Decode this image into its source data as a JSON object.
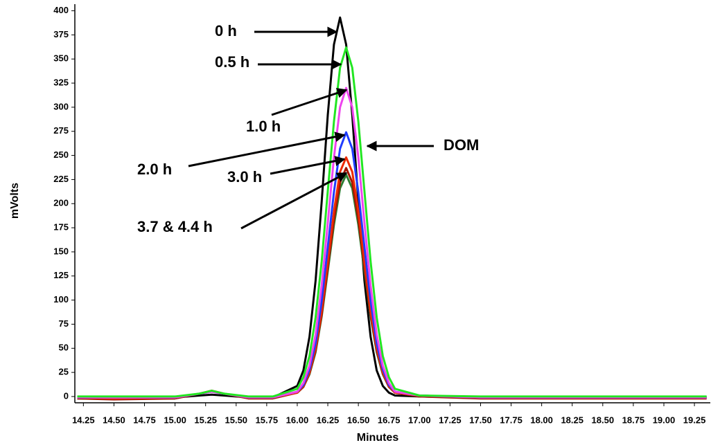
{
  "chart_data": {
    "type": "line",
    "x_label": "Minutes",
    "y_label": "mVolts",
    "x": [
      14.2,
      14.5,
      15.0,
      15.2,
      15.3,
      15.4,
      15.6,
      15.8,
      16.0,
      16.05,
      16.1,
      16.15,
      16.2,
      16.25,
      16.3,
      16.35,
      16.4,
      16.45,
      16.5,
      16.55,
      16.6,
      16.65,
      16.7,
      16.75,
      16.8,
      17.0,
      17.5,
      18.0,
      18.5,
      19.0,
      19.35
    ],
    "series": [
      {
        "color": "#000000",
        "values": [
          -1,
          -1,
          -1,
          1,
          2,
          1,
          -1,
          -1,
          11,
          27,
          62,
          120,
          202,
          292,
          365,
          393,
          365,
          292,
          202,
          120,
          62,
          27,
          11,
          4,
          1,
          0,
          -1,
          -1,
          -1,
          -1,
          -1
        ]
      },
      {
        "color": "#2e7d32",
        "values": [
          -2,
          -2,
          -2,
          3,
          6,
          3,
          -1,
          -1,
          4,
          10,
          23,
          46,
          83,
          130,
          178,
          216,
          230,
          216,
          178,
          130,
          83,
          46,
          23,
          10,
          4,
          0,
          -1,
          -1,
          -1,
          -1,
          -1
        ]
      },
      {
        "color": "#a31500",
        "values": [
          -2,
          -3,
          -2,
          3,
          6,
          3,
          -2,
          -2,
          4,
          10,
          24,
          48,
          85,
          134,
          184,
          222,
          237,
          222,
          184,
          134,
          85,
          48,
          24,
          10,
          4,
          0,
          -2,
          -2,
          -2,
          -2,
          -2
        ]
      },
      {
        "color": "#ee2a00",
        "values": [
          -1,
          -2,
          -1,
          3,
          6,
          3,
          -1,
          -1,
          4,
          11,
          25,
          50,
          89,
          140,
          192,
          233,
          248,
          233,
          192,
          140,
          89,
          50,
          25,
          11,
          4,
          1,
          -1,
          -1,
          -1,
          -1,
          -1
        ]
      },
      {
        "color": "#1f3cff",
        "values": [
          -1,
          -1,
          -1,
          3,
          5,
          3,
          -1,
          -1,
          5,
          12,
          28,
          55,
          99,
          155,
          212,
          257,
          274,
          257,
          212,
          155,
          99,
          55,
          28,
          12,
          5,
          1,
          -1,
          -1,
          -1,
          -1,
          -1
        ]
      },
      {
        "color": "#ee44ee",
        "values": [
          -1,
          -1,
          -1,
          3,
          5,
          3,
          -1,
          -1,
          5,
          14,
          32,
          64,
          115,
          180,
          248,
          300,
          320,
          300,
          248,
          180,
          115,
          64,
          32,
          14,
          5,
          1,
          -1,
          -1,
          -1,
          -1,
          -1
        ]
      },
      {
        "color": "#22e622",
        "values": [
          0,
          0,
          0,
          3,
          6,
          3,
          0,
          0,
          8,
          20,
          42,
          82,
          140,
          213,
          285,
          341,
          362,
          341,
          285,
          213,
          140,
          82,
          42,
          20,
          8,
          1,
          0,
          0,
          0,
          0,
          0
        ]
      }
    ],
    "annotations": [
      "0 h",
      "0.5 h",
      "1.0 h",
      "2.0 h",
      "3.0 h",
      "3.7 & 4.4 h",
      "DOM"
    ],
    "xlim": [
      14.18,
      19.38
    ],
    "ylim": [
      -6.5,
      404
    ],
    "xticks": [
      {
        "value": 14.25,
        "label": "14.25"
      },
      {
        "value": 14.5,
        "label": "14.50"
      },
      {
        "value": 14.75,
        "label": "14.75"
      },
      {
        "value": 15.0,
        "label": "15.00"
      },
      {
        "value": 15.25,
        "label": "15.25"
      },
      {
        "value": 15.5,
        "label": "15.50"
      },
      {
        "value": 15.75,
        "label": "15.75"
      },
      {
        "value": 16.0,
        "label": "16.00"
      },
      {
        "value": 16.25,
        "label": "16.25"
      },
      {
        "value": 16.5,
        "label": "16.50"
      },
      {
        "value": 16.75,
        "label": "16.75"
      },
      {
        "value": 17.0,
        "label": "17.00"
      },
      {
        "value": 17.25,
        "label": "17.25"
      },
      {
        "value": 17.5,
        "label": "17.50"
      },
      {
        "value": 17.75,
        "label": "17.75"
      },
      {
        "value": 18.0,
        "label": "18.00"
      },
      {
        "value": 18.25,
        "label": "18.25"
      },
      {
        "value": 18.5,
        "label": "18.50"
      },
      {
        "value": 18.75,
        "label": "18.75"
      },
      {
        "value": 19.0,
        "label": "19.00"
      },
      {
        "value": 19.25,
        "label": "19.25"
      }
    ],
    "yticks": [
      0,
      25,
      50,
      75,
      100,
      125,
      150,
      175,
      200,
      225,
      250,
      275,
      300,
      325,
      350,
      375,
      400
    ]
  }
}
